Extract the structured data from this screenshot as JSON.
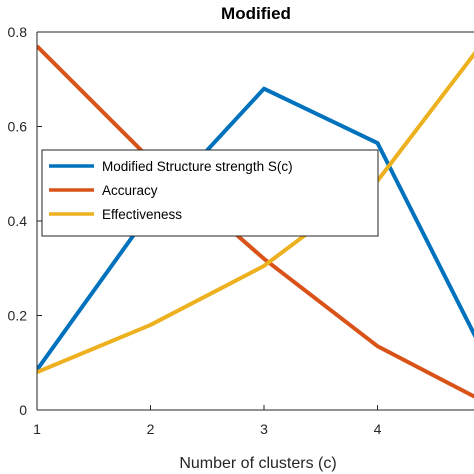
{
  "chart_data": {
    "type": "line",
    "title": "Modified",
    "xlabel": "Number of clusters (c)",
    "ylabel": "",
    "x": [
      1,
      2,
      3,
      4,
      5
    ],
    "xlim": [
      1,
      4.85
    ],
    "ylim": [
      0,
      0.8
    ],
    "xticks": [
      "1",
      "2",
      "3",
      "4"
    ],
    "yticks": [
      "0",
      "0.2",
      "0.4",
      "0.6",
      "0.8"
    ],
    "grid": false,
    "legend_position": "upper-left",
    "series": [
      {
        "name": "Modified Structure strength S(c)",
        "color": "#0072BD",
        "values": [
          0.085,
          0.42,
          0.68,
          0.565,
          0.09
        ]
      },
      {
        "name": "Accuracy",
        "color": "#D95319",
        "values": [
          0.77,
          0.53,
          0.32,
          0.135,
          0.01
        ]
      },
      {
        "name": "Effectiveness",
        "color": "#EDB120",
        "values": [
          0.08,
          0.18,
          0.305,
          0.485,
          0.8
        ]
      }
    ]
  }
}
